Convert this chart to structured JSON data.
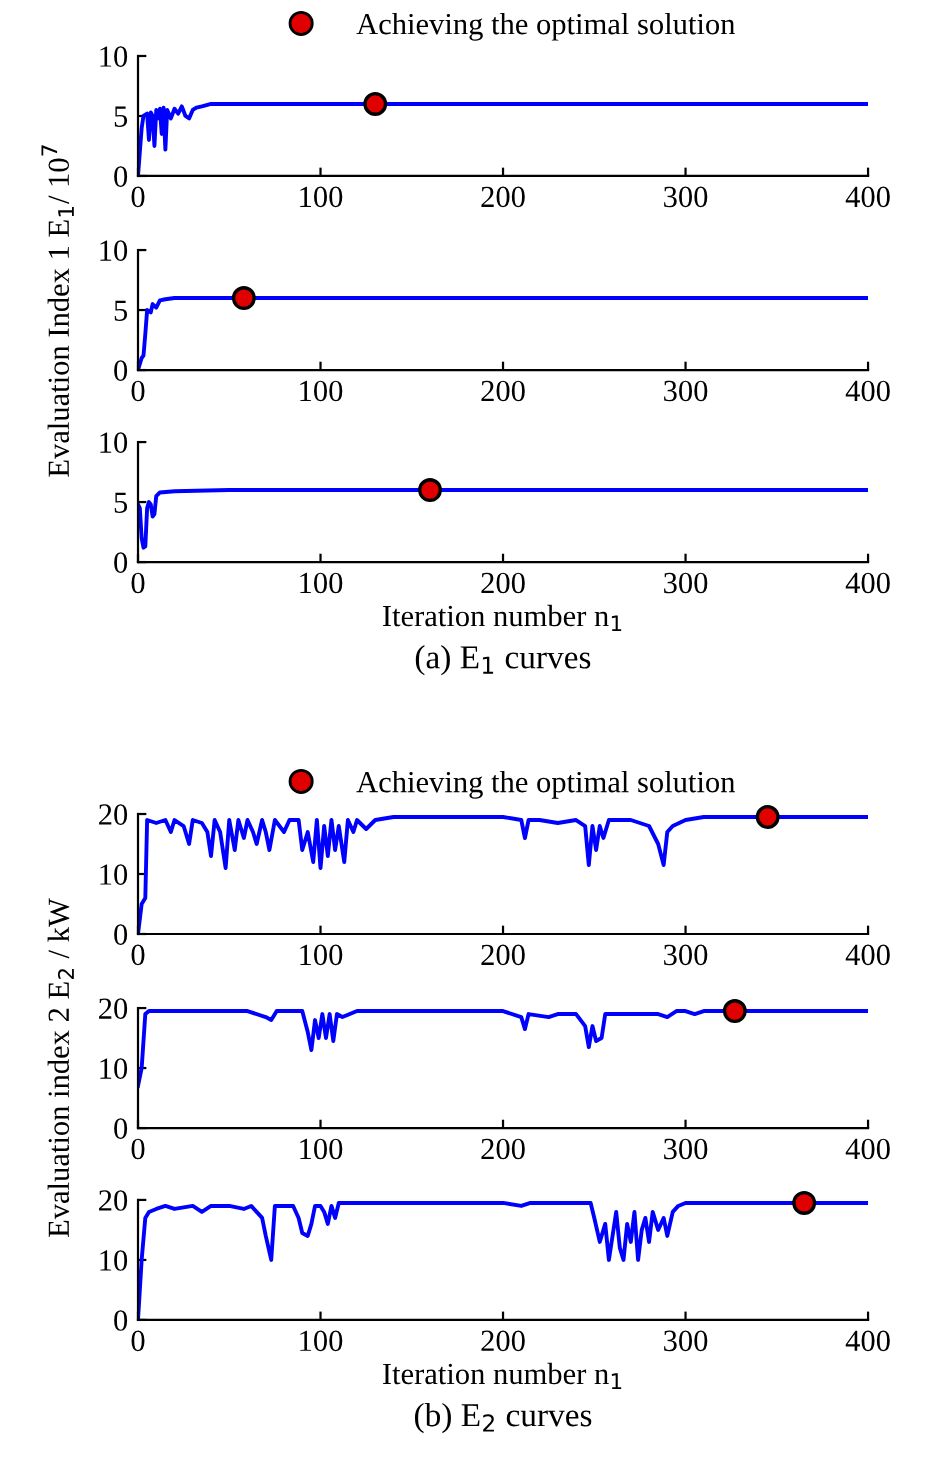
{
  "chart_data": [
    {
      "type": "line",
      "xlim": [
        0,
        400
      ],
      "ylim": [
        0,
        10
      ],
      "xticks": [
        0,
        100,
        200,
        300,
        400
      ],
      "yticks": [
        0,
        5,
        10
      ],
      "legend": "top",
      "series": [
        {
          "color": "#0000ff",
          "x": [
            0,
            2,
            3,
            5,
            6,
            7,
            8,
            9,
            10,
            11,
            12,
            13,
            14,
            15,
            16,
            18,
            20,
            22,
            24,
            26,
            28,
            30,
            32,
            35,
            40,
            60,
            400
          ],
          "values": [
            0,
            4,
            5,
            5.2,
            3,
            5.3,
            5,
            2.5,
            5.5,
            4.8,
            5.6,
            3.5,
            5.7,
            2.2,
            5.5,
            4.8,
            5.6,
            5.2,
            5.8,
            5,
            4.8,
            5.5,
            5.7,
            5.8,
            6,
            6,
            6
          ]
        },
        {
          "type": "scatter",
          "name": "Achieving the optimal solution",
          "color": "#e00000",
          "marker": "circle",
          "x": [
            130
          ],
          "values": [
            6
          ]
        }
      ]
    },
    {
      "type": "line",
      "xlim": [
        0,
        400
      ],
      "ylim": [
        0,
        10
      ],
      "xticks": [
        0,
        100,
        200,
        300,
        400
      ],
      "yticks": [
        0,
        5,
        10
      ],
      "ylabel": "Evaluation Index 1 E$_{1}$/ 10$^{7}$",
      "series": [
        {
          "color": "#0000ff",
          "x": [
            0,
            2,
            3,
            4,
            5,
            7,
            8,
            10,
            12,
            15,
            20,
            400
          ],
          "values": [
            0,
            1,
            1.2,
            3,
            5,
            4.8,
            5.5,
            5.2,
            5.8,
            5.9,
            6,
            6
          ]
        },
        {
          "type": "scatter",
          "color": "#e00000",
          "marker": "circle",
          "x": [
            58
          ],
          "values": [
            6
          ]
        }
      ]
    },
    {
      "type": "line",
      "xlim": [
        0,
        400
      ],
      "ylim": [
        0,
        10
      ],
      "xticks": [
        0,
        100,
        200,
        300,
        400
      ],
      "yticks": [
        0,
        5,
        10
      ],
      "xlabel": "Iteration number n$_{1}$",
      "annotations": [
        "(a) E$_{1}$ curves"
      ],
      "series": [
        {
          "color": "#0000ff",
          "x": [
            0,
            1,
            2,
            3,
            4,
            5,
            6,
            7,
            8,
            9,
            10,
            12,
            20,
            50,
            400
          ],
          "values": [
            4.8,
            4.5,
            2,
            1.2,
            1.3,
            4.5,
            5,
            4.8,
            3.8,
            4,
            5.5,
            5.8,
            5.9,
            6,
            6
          ]
        },
        {
          "type": "scatter",
          "color": "#e00000",
          "marker": "circle",
          "x": [
            160
          ],
          "values": [
            6
          ]
        }
      ]
    },
    {
      "type": "line",
      "xlim": [
        0,
        400
      ],
      "ylim": [
        0,
        20
      ],
      "xticks": [
        0,
        100,
        200,
        300,
        400
      ],
      "yticks": [
        0,
        10,
        20
      ],
      "legend": "top",
      "series": [
        {
          "color": "#0000ff",
          "x": [
            0,
            2,
            4,
            5,
            10,
            15,
            18,
            20,
            25,
            28,
            30,
            35,
            38,
            40,
            42,
            45,
            48,
            50,
            53,
            55,
            58,
            60,
            63,
            65,
            68,
            70,
            72,
            75,
            80,
            83,
            88,
            90,
            93,
            96,
            98,
            100,
            102,
            104,
            106,
            108,
            110,
            113,
            115,
            118,
            120,
            125,
            130,
            140,
            200,
            210,
            212,
            214,
            220,
            230,
            240,
            245,
            247,
            249,
            251,
            253,
            255,
            258,
            270,
            280,
            285,
            288,
            290,
            293,
            300,
            310,
            400
          ],
          "values": [
            0,
            5,
            6,
            19,
            18.5,
            19,
            17,
            19,
            18,
            15,
            19,
            18.5,
            17,
            13,
            19,
            17,
            11,
            19,
            14,
            19,
            16,
            19,
            17,
            15,
            19,
            17,
            14,
            19,
            17,
            19,
            19,
            14,
            17,
            12,
            19,
            11,
            18,
            13,
            19,
            14,
            18,
            12,
            19,
            17,
            19,
            17.5,
            19,
            19.5,
            19.5,
            19,
            16,
            19,
            19,
            18.5,
            19,
            18,
            11.5,
            18,
            14,
            18,
            16,
            19,
            19,
            18,
            15,
            11.5,
            17,
            18,
            19,
            19.5,
            19.5
          ]
        },
        {
          "type": "scatter",
          "name": "Achieving the optimal solution",
          "color": "#e00000",
          "marker": "circle",
          "x": [
            345
          ],
          "values": [
            19.5
          ]
        }
      ]
    },
    {
      "type": "line",
      "xlim": [
        0,
        400
      ],
      "ylim": [
        0,
        20
      ],
      "xticks": [
        0,
        100,
        200,
        300,
        400
      ],
      "yticks": [
        0,
        10,
        20
      ],
      "ylabel": "Evaluation index 2 E$_{2}$ / kW",
      "series": [
        {
          "color": "#0000ff",
          "x": [
            0,
            2,
            4,
            6,
            60,
            70,
            73,
            76,
            90,
            93,
            95,
            97,
            99,
            101,
            103,
            105,
            107,
            109,
            112,
            120,
            200,
            210,
            212,
            214,
            225,
            230,
            240,
            245,
            247,
            249,
            251,
            254,
            256,
            285,
            290,
            295,
            300,
            305,
            310,
            400
          ],
          "values": [
            7,
            10,
            19,
            19.5,
            19.5,
            18.5,
            18,
            19.5,
            19.5,
            16,
            13,
            18,
            15,
            19,
            15,
            19,
            14.5,
            19,
            18.5,
            19.5,
            19.5,
            18.5,
            16.5,
            19,
            18.5,
            19,
            19,
            17,
            13.5,
            17,
            14.5,
            15,
            19,
            19,
            18.5,
            19.5,
            19.5,
            19,
            19.5,
            19.5
          ]
        },
        {
          "type": "scatter",
          "color": "#e00000",
          "marker": "circle",
          "x": [
            327
          ],
          "values": [
            19.5
          ]
        }
      ]
    },
    {
      "type": "line",
      "xlim": [
        0,
        400
      ],
      "ylim": [
        0,
        20
      ],
      "xticks": [
        0,
        100,
        200,
        300,
        400
      ],
      "yticks": [
        0,
        10,
        20
      ],
      "xlabel": "Iteration number n$_{1}$",
      "annotations": [
        "(b) E$_{2}$ curves"
      ],
      "series": [
        {
          "color": "#0000ff",
          "x": [
            0,
            2,
            4,
            6,
            10,
            15,
            20,
            30,
            35,
            40,
            50,
            58,
            62,
            65,
            68,
            70,
            73,
            75,
            85,
            88,
            90,
            93,
            95,
            97,
            100,
            102,
            104,
            106,
            108,
            110,
            200,
            210,
            215,
            248,
            250,
            253,
            256,
            258,
            260,
            262,
            264,
            266,
            268,
            270,
            272,
            274,
            276,
            278,
            280,
            282,
            285,
            288,
            290,
            293,
            296,
            300,
            400
          ],
          "values": [
            0,
            10,
            17,
            18,
            18.5,
            19,
            18.5,
            19,
            18,
            19,
            19,
            18.5,
            19,
            18,
            17,
            14,
            10,
            19,
            19,
            17,
            14.5,
            14,
            16,
            19,
            19,
            18,
            16,
            19,
            17,
            19.5,
            19.5,
            19,
            19.5,
            19.5,
            17,
            13,
            16,
            10,
            14,
            18,
            12,
            10,
            16,
            13,
            18,
            10,
            15,
            17,
            13,
            18,
            15,
            17,
            14,
            18,
            19,
            19.5,
            19.5
          ]
        },
        {
          "type": "scatter",
          "color": "#e00000",
          "marker": "circle",
          "x": [
            365
          ],
          "values": [
            19.5
          ]
        }
      ]
    }
  ]
}
